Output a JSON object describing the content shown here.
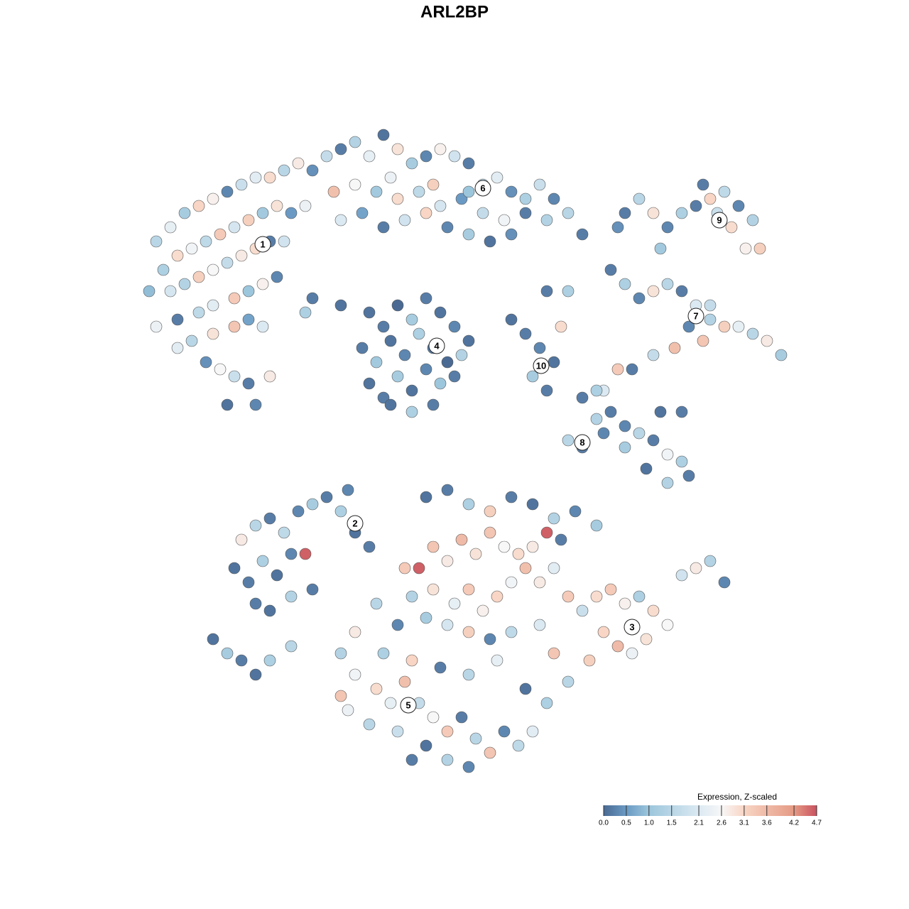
{
  "chart_data": {
    "type": "scatter",
    "title": "ARL2BP",
    "xlim": [
      0,
      128
    ],
    "ylim": [
      128,
      0
    ],
    "colorbar_title": "Expression, Z-scaled",
    "clim": [
      0,
      4.7
    ],
    "colorscale": [
      {
        "value": 0,
        "color": "#4a6a93"
      },
      {
        "value": 0.5,
        "color": "#6a9ac4"
      },
      {
        "value": 1.0,
        "color": "#9cc6dc"
      },
      {
        "value": 2.1,
        "color": "#dbe9f2"
      },
      {
        "value": 2.6,
        "color": "#f7f7f7"
      },
      {
        "value": 3.1,
        "color": "#f8d5c4"
      },
      {
        "value": 4.2,
        "color": "#e59a84"
      },
      {
        "value": 4.7,
        "color": "#c9525f"
      }
    ],
    "cticks": [
      {
        "value": 0,
        "label": "0.0"
      },
      0.5,
      {
        "value": 1,
        "label": "1.0"
      },
      1.5,
      2.1,
      2.6,
      3.1,
      3.6,
      4.2,
      4.7
    ],
    "points": [
      [
        22,
        34,
        1.5
      ],
      [
        24,
        32,
        2.3
      ],
      [
        26,
        30,
        1.2
      ],
      [
        28,
        29,
        3.1
      ],
      [
        30,
        28,
        2.7
      ],
      [
        32,
        27,
        0.3
      ],
      [
        34,
        26,
        1.8
      ],
      [
        36,
        25,
        2.2
      ],
      [
        38,
        25,
        3.0
      ],
      [
        40,
        24,
        1.5
      ],
      [
        42,
        23,
        2.8
      ],
      [
        44,
        24,
        0.4
      ],
      [
        23,
        38,
        1.3
      ],
      [
        25,
        36,
        3.0
      ],
      [
        27,
        35,
        2.5
      ],
      [
        29,
        34,
        1.6
      ],
      [
        31,
        33,
        3.3
      ],
      [
        33,
        32,
        2.0
      ],
      [
        35,
        31,
        3.2
      ],
      [
        37,
        30,
        1.1
      ],
      [
        39,
        29,
        2.9
      ],
      [
        41,
        30,
        0.5
      ],
      [
        43,
        29,
        2.4
      ],
      [
        21,
        41,
        0.9
      ],
      [
        24,
        41,
        2.0
      ],
      [
        26,
        40,
        1.4
      ],
      [
        28,
        39,
        3.2
      ],
      [
        30,
        38,
        2.6
      ],
      [
        32,
        37,
        1.7
      ],
      [
        34,
        36,
        2.8
      ],
      [
        36,
        35,
        3.0
      ],
      [
        38,
        34,
        0.2
      ],
      [
        40,
        34,
        1.9
      ],
      [
        22,
        46,
        2.4
      ],
      [
        25,
        45,
        0.2
      ],
      [
        28,
        44,
        1.6
      ],
      [
        30,
        43,
        2.2
      ],
      [
        33,
        42,
        3.3
      ],
      [
        35,
        41,
        1.0
      ],
      [
        37,
        40,
        2.7
      ],
      [
        39,
        39,
        0.3
      ],
      [
        27,
        48,
        1.5
      ],
      [
        30,
        47,
        2.9
      ],
      [
        33,
        46,
        3.4
      ],
      [
        35,
        45,
        0.6
      ],
      [
        37,
        46,
        2.1
      ],
      [
        29,
        51,
        0.4
      ],
      [
        31,
        52,
        2.6
      ],
      [
        33,
        53,
        1.8
      ],
      [
        35,
        54,
        0.2
      ],
      [
        38,
        53,
        2.8
      ],
      [
        32,
        57,
        0.1
      ],
      [
        36,
        57,
        0.3
      ],
      [
        25,
        49,
        2.2
      ],
      [
        43,
        44,
        1.3
      ],
      [
        46,
        22,
        1.7
      ],
      [
        48,
        21,
        0.2
      ],
      [
        50,
        20,
        1.4
      ],
      [
        52,
        22,
        2.3
      ],
      [
        54,
        19,
        0.1
      ],
      [
        56,
        21,
        2.9
      ],
      [
        58,
        23,
        1.2
      ],
      [
        60,
        22,
        0.3
      ],
      [
        62,
        21,
        2.7
      ],
      [
        64,
        22,
        1.9
      ],
      [
        66,
        23,
        0.2
      ],
      [
        68,
        26,
        1.6
      ],
      [
        70,
        25,
        2.2
      ],
      [
        72,
        27,
        0.4
      ],
      [
        74,
        28,
        1.3
      ],
      [
        76,
        26,
        1.8
      ],
      [
        78,
        28,
        0.3
      ],
      [
        80,
        30,
        1.5
      ],
      [
        82,
        33,
        0.2
      ],
      [
        47,
        27,
        3.5
      ],
      [
        50,
        26,
        2.6
      ],
      [
        53,
        27,
        1.1
      ],
      [
        56,
        28,
        3.0
      ],
      [
        59,
        27,
        1.6
      ],
      [
        62,
        29,
        2.0
      ],
      [
        65,
        28,
        0.5
      ],
      [
        68,
        30,
        1.7
      ],
      [
        71,
        31,
        2.5
      ],
      [
        74,
        30,
        0.2
      ],
      [
        77,
        31,
        1.4
      ],
      [
        48,
        31,
        2.1
      ],
      [
        51,
        30,
        0.6
      ],
      [
        54,
        32,
        0.2
      ],
      [
        57,
        31,
        1.9
      ],
      [
        60,
        30,
        3.1
      ],
      [
        63,
        32,
        0.3
      ],
      [
        66,
        33,
        1.2
      ],
      [
        69,
        34,
        0.1
      ],
      [
        72,
        33,
        0.4
      ],
      [
        61,
        26,
        3.2
      ],
      [
        66,
        27,
        1.0
      ],
      [
        55,
        25,
        2.4
      ],
      [
        52,
        44,
        0.1
      ],
      [
        54,
        46,
        0.2
      ],
      [
        56,
        43,
        0.0
      ],
      [
        58,
        45,
        1.2
      ],
      [
        60,
        42,
        0.2
      ],
      [
        62,
        44,
        0.1
      ],
      [
        64,
        46,
        0.3
      ],
      [
        66,
        48,
        0.1
      ],
      [
        51,
        49,
        0.2
      ],
      [
        53,
        51,
        1.1
      ],
      [
        55,
        48,
        0.1
      ],
      [
        57,
        50,
        0.3
      ],
      [
        59,
        47,
        1.3
      ],
      [
        61,
        49,
        0.2
      ],
      [
        63,
        51,
        0.0
      ],
      [
        65,
        50,
        1.4
      ],
      [
        52,
        54,
        0.1
      ],
      [
        54,
        56,
        0.2
      ],
      [
        56,
        53,
        1.2
      ],
      [
        58,
        55,
        0.1
      ],
      [
        60,
        52,
        0.3
      ],
      [
        62,
        54,
        1.0
      ],
      [
        64,
        53,
        0.2
      ],
      [
        55,
        57,
        0.1
      ],
      [
        58,
        58,
        1.3
      ],
      [
        61,
        57,
        0.2
      ],
      [
        48,
        43,
        0.1
      ],
      [
        44,
        42,
        0.2
      ],
      [
        74,
        47,
        0.2
      ],
      [
        76,
        49,
        0.3
      ],
      [
        78,
        51,
        0.1
      ],
      [
        75,
        53,
        1.2
      ],
      [
        77,
        55,
        0.2
      ],
      [
        79,
        46,
        3.0
      ],
      [
        72,
        45,
        0.1
      ],
      [
        77,
        41,
        0.2
      ],
      [
        80,
        41,
        1.3
      ],
      [
        88,
        30,
        0.2
      ],
      [
        90,
        28,
        1.5
      ],
      [
        92,
        30,
        2.9
      ],
      [
        94,
        32,
        0.3
      ],
      [
        96,
        30,
        1.3
      ],
      [
        98,
        29,
        0.2
      ],
      [
        100,
        28,
        3.1
      ],
      [
        102,
        27,
        1.6
      ],
      [
        104,
        29,
        0.3
      ],
      [
        106,
        31,
        1.4
      ],
      [
        103,
        32,
        3.0
      ],
      [
        101,
        30,
        1.8
      ],
      [
        99,
        26,
        0.2
      ],
      [
        105,
        35,
        2.7
      ],
      [
        107,
        35,
        3.2
      ],
      [
        93,
        35,
        1.1
      ],
      [
        87,
        32,
        0.4
      ],
      [
        86,
        38,
        0.2
      ],
      [
        88,
        40,
        1.3
      ],
      [
        90,
        42,
        0.3
      ],
      [
        92,
        41,
        2.9
      ],
      [
        94,
        40,
        1.5
      ],
      [
        96,
        41,
        0.2
      ],
      [
        98,
        43,
        2.1
      ],
      [
        100,
        45,
        1.4
      ],
      [
        102,
        46,
        3.2
      ],
      [
        104,
        46,
        2.3
      ],
      [
        106,
        47,
        1.5
      ],
      [
        108,
        48,
        2.8
      ],
      [
        110,
        50,
        1.2
      ],
      [
        99,
        48,
        3.4
      ],
      [
        97,
        46,
        0.3
      ],
      [
        95,
        49,
        3.5
      ],
      [
        92,
        50,
        1.7
      ],
      [
        89,
        52,
        0.2
      ],
      [
        87,
        52,
        3.3
      ],
      [
        85,
        55,
        2.1
      ],
      [
        100,
        43,
        1.7
      ],
      [
        82,
        56,
        0.2
      ],
      [
        84,
        55,
        1.3
      ],
      [
        86,
        58,
        0.2
      ],
      [
        88,
        60,
        0.3
      ],
      [
        90,
        61,
        1.5
      ],
      [
        92,
        62,
        0.2
      ],
      [
        94,
        64,
        2.5
      ],
      [
        96,
        65,
        1.3
      ],
      [
        97,
        67,
        0.2
      ],
      [
        94,
        68,
        1.4
      ],
      [
        91,
        66,
        0.1
      ],
      [
        88,
        63,
        1.2
      ],
      [
        85,
        61,
        0.3
      ],
      [
        82,
        63,
        0.2
      ],
      [
        80,
        62,
        1.5
      ],
      [
        93,
        58,
        0.1
      ],
      [
        96,
        58,
        0.2
      ],
      [
        84,
        59,
        1.4
      ],
      [
        33,
        80,
        0.1
      ],
      [
        35,
        82,
        0.2
      ],
      [
        37,
        79,
        1.3
      ],
      [
        39,
        81,
        0.1
      ],
      [
        41,
        78,
        0.3
      ],
      [
        43,
        78,
        4.6
      ],
      [
        36,
        74,
        1.5
      ],
      [
        38,
        73,
        0.2
      ],
      [
        40,
        75,
        1.6
      ],
      [
        42,
        72,
        0.3
      ],
      [
        44,
        71,
        1.2
      ],
      [
        46,
        70,
        0.2
      ],
      [
        48,
        72,
        1.3
      ],
      [
        50,
        75,
        0.1
      ],
      [
        52,
        77,
        0.2
      ],
      [
        34,
        76,
        2.8
      ],
      [
        38,
        86,
        0.1
      ],
      [
        41,
        84,
        1.4
      ],
      [
        44,
        83,
        0.2
      ],
      [
        49,
        69,
        0.3
      ],
      [
        36,
        85,
        0.2
      ],
      [
        30,
        90,
        0.1
      ],
      [
        32,
        92,
        1.2
      ],
      [
        34,
        93,
        0.2
      ],
      [
        36,
        95,
        0.1
      ],
      [
        38,
        93,
        1.3
      ],
      [
        41,
        91,
        1.5
      ],
      [
        57,
        80,
        3.3
      ],
      [
        59,
        80,
        4.6
      ],
      [
        61,
        77,
        3.4
      ],
      [
        63,
        79,
        2.8
      ],
      [
        65,
        76,
        3.6
      ],
      [
        67,
        78,
        2.9
      ],
      [
        69,
        75,
        3.4
      ],
      [
        71,
        77,
        2.6
      ],
      [
        73,
        78,
        3.0
      ],
      [
        75,
        77,
        2.8
      ],
      [
        77,
        75,
        4.6
      ],
      [
        79,
        76,
        0.2
      ],
      [
        60,
        70,
        0.1
      ],
      [
        63,
        69,
        0.2
      ],
      [
        66,
        71,
        1.3
      ],
      [
        69,
        72,
        3.2
      ],
      [
        72,
        70,
        0.2
      ],
      [
        75,
        71,
        0.1
      ],
      [
        78,
        73,
        1.4
      ],
      [
        81,
        72,
        0.3
      ],
      [
        84,
        74,
        1.2
      ],
      [
        58,
        84,
        1.4
      ],
      [
        61,
        83,
        2.9
      ],
      [
        64,
        85,
        2.3
      ],
      [
        66,
        83,
        3.3
      ],
      [
        68,
        86,
        2.7
      ],
      [
        70,
        84,
        3.1
      ],
      [
        72,
        82,
        2.5
      ],
      [
        74,
        80,
        3.5
      ],
      [
        76,
        82,
        2.8
      ],
      [
        78,
        80,
        2.2
      ],
      [
        80,
        84,
        3.3
      ],
      [
        82,
        86,
        1.8
      ],
      [
        84,
        84,
        3.0
      ],
      [
        86,
        83,
        3.3
      ],
      [
        88,
        85,
        2.7
      ],
      [
        90,
        84,
        1.3
      ],
      [
        92,
        86,
        3.0
      ],
      [
        94,
        88,
        2.6
      ],
      [
        96,
        81,
        1.9
      ],
      [
        98,
        80,
        2.8
      ],
      [
        100,
        79,
        1.4
      ],
      [
        102,
        82,
        0.3
      ],
      [
        85,
        89,
        3.1
      ],
      [
        87,
        91,
        3.6
      ],
      [
        89,
        92,
        2.4
      ],
      [
        91,
        90,
        2.9
      ],
      [
        83,
        93,
        3.2
      ],
      [
        80,
        96,
        1.5
      ],
      [
        78,
        92,
        3.4
      ],
      [
        76,
        88,
        2.1
      ],
      [
        72,
        89,
        1.6
      ],
      [
        69,
        90,
        0.3
      ],
      [
        66,
        89,
        3.2
      ],
      [
        63,
        88,
        2.0
      ],
      [
        60,
        87,
        1.2
      ],
      [
        56,
        88,
        0.3
      ],
      [
        53,
        85,
        1.5
      ],
      [
        50,
        89,
        2.8
      ],
      [
        48,
        92,
        1.4
      ],
      [
        50,
        95,
        2.5
      ],
      [
        53,
        97,
        3.0
      ],
      [
        55,
        99,
        2.3
      ],
      [
        57,
        96,
        3.5
      ],
      [
        59,
        99,
        1.7
      ],
      [
        61,
        101,
        2.6
      ],
      [
        63,
        103,
        3.3
      ],
      [
        65,
        101,
        0.2
      ],
      [
        67,
        104,
        1.5
      ],
      [
        69,
        106,
        3.4
      ],
      [
        71,
        103,
        0.3
      ],
      [
        73,
        105,
        1.6
      ],
      [
        75,
        103,
        2.2
      ],
      [
        60,
        105,
        0.1
      ],
      [
        56,
        103,
        1.8
      ],
      [
        52,
        102,
        1.5
      ],
      [
        49,
        100,
        2.4
      ],
      [
        58,
        107,
        0.2
      ],
      [
        63,
        107,
        1.4
      ],
      [
        66,
        108,
        0.3
      ],
      [
        54,
        92,
        1.3
      ],
      [
        58,
        93,
        3.1
      ],
      [
        62,
        94,
        0.2
      ],
      [
        66,
        95,
        1.5
      ],
      [
        70,
        93,
        2.3
      ],
      [
        74,
        97,
        0.1
      ],
      [
        77,
        99,
        1.3
      ],
      [
        48,
        98,
        3.4
      ]
    ],
    "clusters": [
      {
        "label": "1",
        "x": 37,
        "y": 34.4
      },
      {
        "label": "2",
        "x": 50,
        "y": 73.7
      },
      {
        "label": "3",
        "x": 89,
        "y": 88.3
      },
      {
        "label": "4",
        "x": 61.5,
        "y": 48.7
      },
      {
        "label": "5",
        "x": 57.5,
        "y": 99.3
      },
      {
        "label": "6",
        "x": 68,
        "y": 26.5
      },
      {
        "label": "7",
        "x": 98,
        "y": 44.5
      },
      {
        "label": "8",
        "x": 82,
        "y": 62.3
      },
      {
        "label": "9",
        "x": 101.3,
        "y": 31
      },
      {
        "label": "10",
        "x": 76.2,
        "y": 51.5
      }
    ]
  }
}
